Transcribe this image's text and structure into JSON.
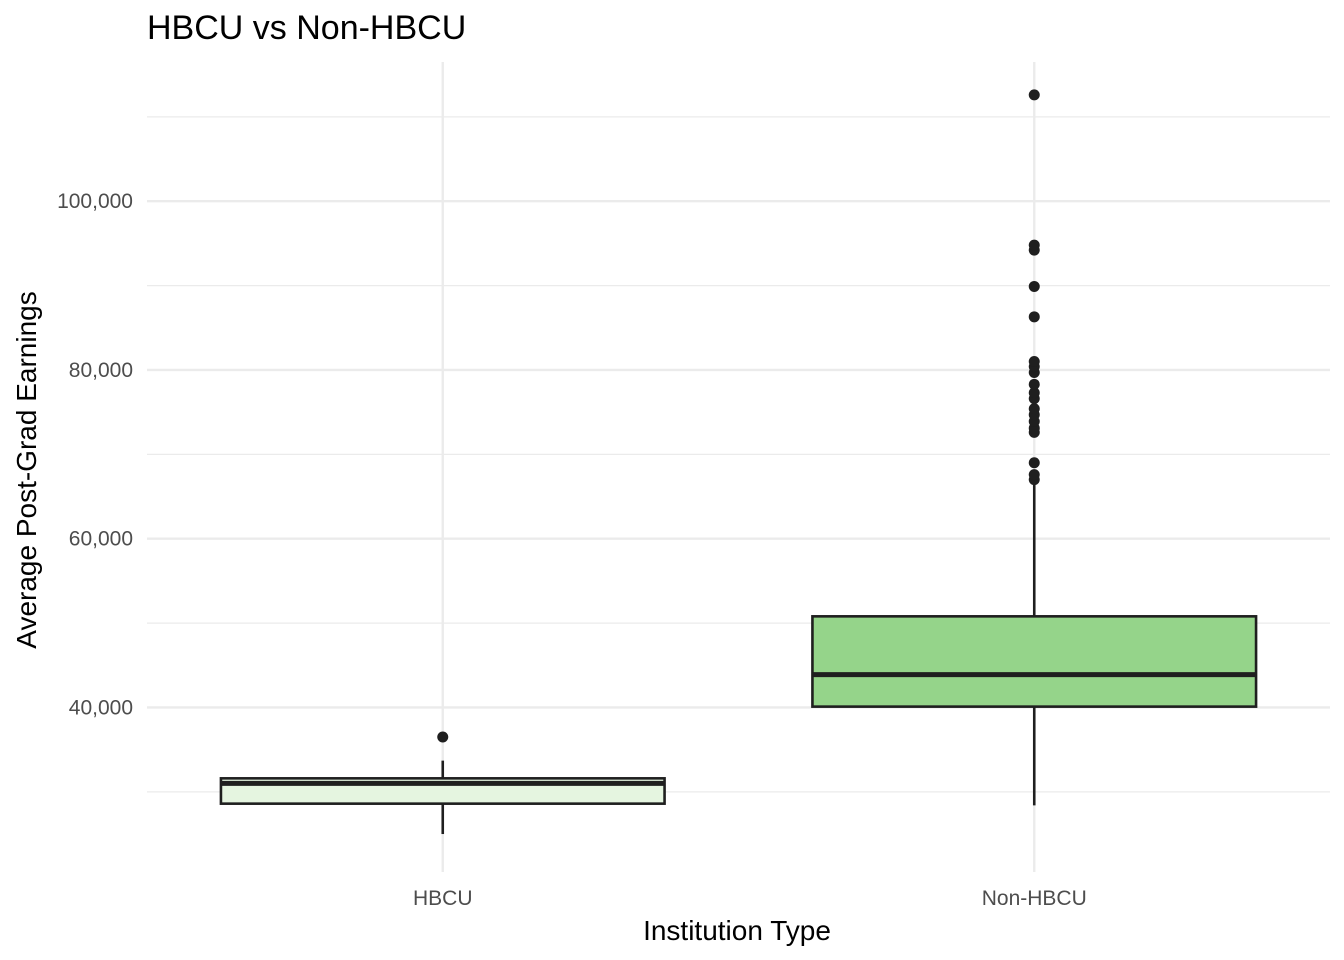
{
  "chart_data": {
    "type": "boxplot",
    "title": "HBCU vs Non-HBCU",
    "xlabel": "Institution Type",
    "ylabel": "Average Post-Grad Earnings",
    "categories": [
      "HBCU",
      "Non-HBCU"
    ],
    "ylim": [
      20500,
      116500
    ],
    "y_ticks": [
      40000,
      60000,
      80000,
      100000
    ],
    "y_tick_labels": [
      "40,000",
      "60,000",
      "80,000",
      "100,000"
    ],
    "y_minor_ticks": [
      30000,
      50000,
      70000,
      90000,
      110000
    ],
    "grid": true,
    "legend": "none",
    "boxes": [
      {
        "category": "HBCU",
        "fill": "#e5f5e0",
        "whisker_low": 25000,
        "q1": 28600,
        "median": 31000,
        "q3": 31600,
        "whisker_high": 33700,
        "outliers": [
          36500
        ]
      },
      {
        "category": "Non-HBCU",
        "fill": "#95d48a",
        "whisker_low": 28400,
        "q1": 40100,
        "median": 43900,
        "q3": 50800,
        "whisker_high": 66800,
        "outliers": [
          67000,
          67600,
          69000,
          72600,
          73100,
          73900,
          74700,
          75400,
          76600,
          77300,
          78300,
          79700,
          80400,
          81000,
          86300,
          89900,
          94200,
          94800,
          112600
        ]
      }
    ],
    "outline_color": "#1f1f1f",
    "grid_color": "#ebebeb"
  }
}
